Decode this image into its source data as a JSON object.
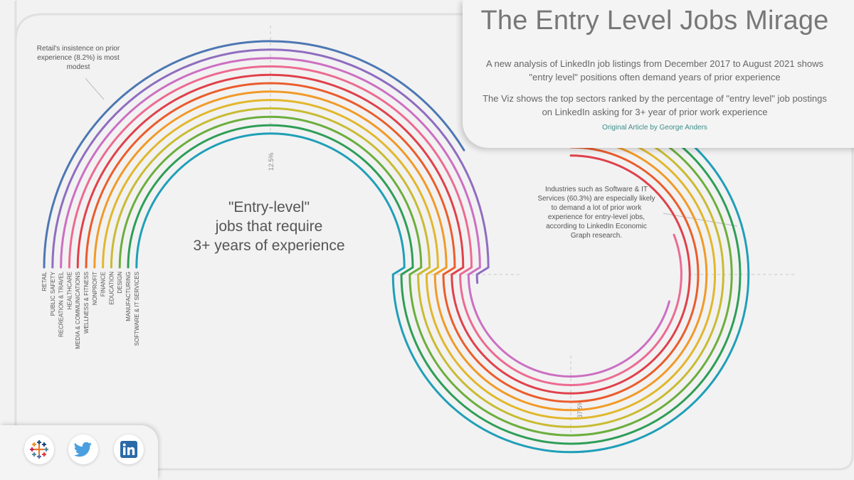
{
  "header": {
    "title": "The Entry Level Jobs Mirage",
    "paragraph_1": "A new analysis of LinkedIn job listings from December 2017 to August 2021 shows \"entry level\" positions often demand years of prior experience",
    "paragraph_2": "The Viz shows the top sectors ranked by the percentage of \"entry level\" job postings on LinkedIn asking for 3+ year of prior work experience",
    "credit": "Original Article by George Anders"
  },
  "annotations": {
    "retail_note": "Retail's insistence on prior experience (8.2%) is most modest",
    "software_note": "Industries such as Software & IT Services (60.3%) are especially likely to demand a lot of prior work experience for entry-level jobs, according to LinkedIn Economic Graph research."
  },
  "center_label": {
    "line1": "\"Entry-level\"",
    "line2": "jobs that require",
    "line3": "3+ years of experience"
  },
  "social_icons": [
    {
      "name": "tableau-icon",
      "color": "#e8762d"
    },
    {
      "name": "twitter-icon",
      "color": "#4a9fe0"
    },
    {
      "name": "linkedin-icon",
      "color": "#2a6aa6"
    }
  ],
  "chart_data": {
    "type": "radial-bar",
    "unit": "%",
    "reference_marks": [
      {
        "label": "12.5%",
        "value": 12.5
      },
      {
        "label": "37.5%",
        "value": 37.5
      }
    ],
    "series": [
      {
        "category": "RETAIL",
        "value": 8.2,
        "color": "#4d77b3"
      },
      {
        "category": "PUBLIC SAFETY",
        "value": 10.2,
        "color": "#8f6dbf"
      },
      {
        "category": "RECREATION & TRAVEL",
        "value": 19.0,
        "color": "#cc6fc2"
      },
      {
        "category": "HEALTHCARE",
        "value": 21.0,
        "color": "#ec6b92"
      },
      {
        "category": "MEDIA & COMMUNICATIONS",
        "value": 26.8,
        "color": "#e0414b"
      },
      {
        "category": "WELLNESS & FITNESS",
        "value": 29.0,
        "color": "#ea5d2c"
      },
      {
        "category": "NONPROFIT",
        "value": 32.0,
        "color": "#f19a28"
      },
      {
        "category": "FINANCE",
        "value": 37.0,
        "color": "#e2b72c"
      },
      {
        "category": "EDUCATION",
        "value": 42.0,
        "color": "#c9bb33"
      },
      {
        "category": "DESIGN",
        "value": 47.0,
        "color": "#6cae3d"
      },
      {
        "category": "MANUFACTURING",
        "value": 52.0,
        "color": "#2e9e57"
      },
      {
        "category": "SOFTWARE & IT SERVICES",
        "value": 60.3,
        "color": "#1f9fb8"
      }
    ]
  }
}
